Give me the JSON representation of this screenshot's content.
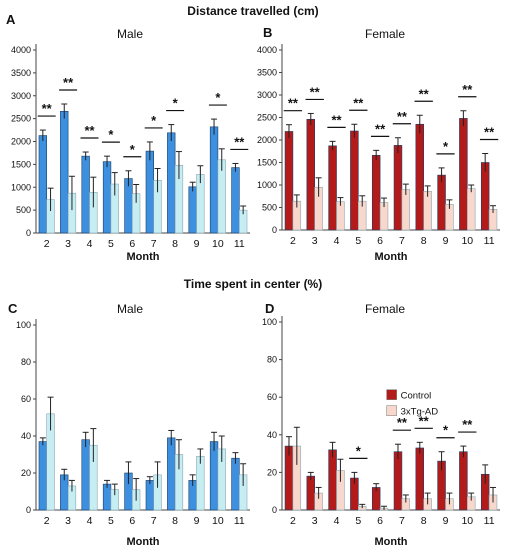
{
  "section_titles": [
    "Distance travelled  (cm)",
    "Time spent in center  (%)"
  ],
  "chart_data": [
    {
      "type": "bar",
      "panel": "A",
      "title": "Male",
      "xlabel": "Month",
      "ylabel": "",
      "categories": [
        "2",
        "3",
        "4",
        "5",
        "6",
        "7",
        "8",
        "9",
        "10",
        "11"
      ],
      "ylim": [
        0,
        4000
      ],
      "yticks": [
        "0",
        "500",
        "1000",
        "1500",
        "2000",
        "2500",
        "3000",
        "3500",
        "4000"
      ],
      "colors": {
        "Control": "#3d8fe0",
        "3xTg-AD": "#c6eef2"
      },
      "series": [
        {
          "values": [
            2130,
            2660,
            1680,
            1560,
            1190,
            1790,
            2190,
            1010,
            2320,
            1430
          ],
          "errors": [
            120,
            160,
            90,
            120,
            170,
            200,
            180,
            100,
            170,
            90
          ]
        },
        {
          "values": [
            730,
            870,
            890,
            1070,
            860,
            1150,
            1480,
            1280,
            1600,
            500
          ],
          "errors": [
            250,
            370,
            330,
            250,
            200,
            260,
            300,
            190,
            240,
            90
          ]
        }
      ],
      "significance": [
        "**",
        "**",
        "**",
        "*",
        "*",
        "*",
        "*",
        "",
        "*",
        "**"
      ]
    },
    {
      "type": "bar",
      "panel": "B",
      "title": "Female",
      "xlabel": "Month",
      "ylabel": "",
      "categories": [
        "2",
        "3",
        "4",
        "5",
        "6",
        "7",
        "8",
        "9",
        "10",
        "11"
      ],
      "ylim": [
        0,
        4000
      ],
      "yticks": [
        "0",
        "500",
        "1000",
        "1500",
        "2000",
        "2500",
        "3000",
        "3500",
        "4000"
      ],
      "colors": {
        "Control": "#b31b1b",
        "3xTg-AD": "#f8d8cc"
      },
      "series": [
        {
          "values": [
            2190,
            2460,
            1870,
            2200,
            1660,
            1880,
            2350,
            1220,
            2480,
            1500
          ],
          "errors": [
            150,
            130,
            100,
            150,
            110,
            170,
            200,
            160,
            170,
            200
          ]
        },
        {
          "values": [
            640,
            950,
            630,
            640,
            610,
            900,
            860,
            570,
            920,
            460
          ],
          "errors": [
            140,
            210,
            90,
            120,
            100,
            120,
            120,
            100,
            80,
            80
          ]
        }
      ],
      "significance": [
        "**",
        "**",
        "**",
        "**",
        "**",
        "**",
        "**",
        "*",
        "**",
        "**"
      ]
    },
    {
      "type": "bar",
      "panel": "C",
      "title": "Male",
      "xlabel": "Month",
      "ylabel": "",
      "categories": [
        "2",
        "3",
        "4",
        "5",
        "6",
        "7",
        "8",
        "9",
        "10",
        "11"
      ],
      "ylim": [
        0,
        100
      ],
      "yticks": [
        "0",
        "20",
        "40",
        "60",
        "80",
        "100"
      ],
      "colors": {
        "Control": "#3d8fe0",
        "3xTg-AD": "#c6eef2"
      },
      "series": [
        {
          "values": [
            37,
            19,
            38,
            14,
            20,
            16,
            39,
            16,
            37,
            28
          ],
          "errors": [
            2,
            3,
            4,
            2,
            6,
            2,
            4,
            3,
            5,
            3
          ]
        },
        {
          "values": [
            52,
            13,
            35,
            11,
            11,
            19,
            30,
            29,
            33,
            19
          ],
          "errors": [
            9,
            3,
            9,
            3,
            6,
            7,
            8,
            4,
            7,
            6
          ]
        }
      ],
      "significance": [
        "",
        "",
        "",
        "",
        "",
        "",
        "",
        "",
        "",
        ""
      ]
    },
    {
      "type": "bar",
      "panel": "D",
      "title": "Female",
      "xlabel": "Month",
      "ylabel": "",
      "categories": [
        "2",
        "3",
        "4",
        "5",
        "6",
        "7",
        "8",
        "9",
        "10",
        "11"
      ],
      "ylim": [
        0,
        100
      ],
      "yticks": [
        "0",
        "20",
        "40",
        "60",
        "80",
        "100"
      ],
      "colors": {
        "Control": "#b31b1b",
        "3xTg-AD": "#f8d8cc"
      },
      "series": [
        {
          "name": "Control",
          "values": [
            34,
            18,
            32,
            17,
            12,
            31,
            33,
            26,
            31,
            19
          ],
          "errors": [
            5,
            2,
            4,
            3,
            2,
            4,
            3,
            5,
            3,
            5
          ]
        },
        {
          "name": "3xTg-AD",
          "values": [
            34,
            9,
            21,
            2,
            1,
            6,
            6,
            6,
            7,
            8
          ],
          "errors": [
            10,
            3,
            6,
            1,
            1,
            2,
            3,
            3,
            2,
            4
          ]
        }
      ],
      "significance": [
        "",
        "",
        "",
        "*",
        "",
        "**",
        "**",
        "*",
        "**",
        ""
      ],
      "legend": "center-right"
    }
  ]
}
